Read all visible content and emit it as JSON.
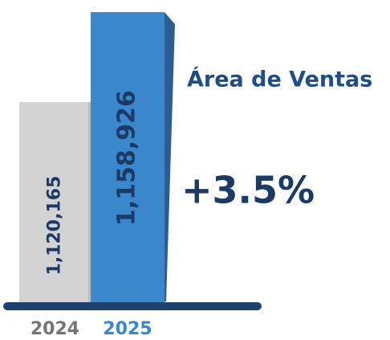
{
  "chart_data": {
    "type": "bar",
    "title": "Área de Ventas",
    "annotation": "+3.5%",
    "categories": [
      "2024",
      "2025"
    ],
    "values": [
      1120165,
      1158926
    ],
    "value_labels": [
      "1,120,165",
      "1,158,926"
    ],
    "colors": [
      "#d3d3d3",
      "#3a87cc"
    ],
    "label_colors": [
      "#757575",
      "#3a87cc"
    ],
    "ylim": [
      1033300,
      1160000
    ]
  }
}
